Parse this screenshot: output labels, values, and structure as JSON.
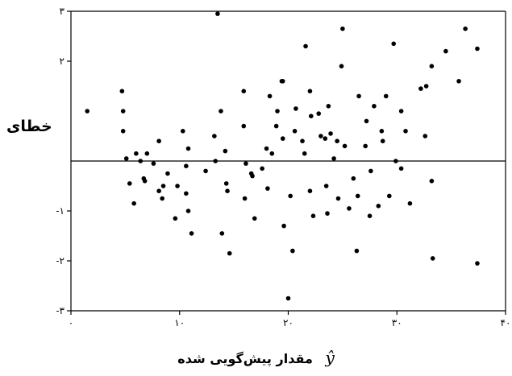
{
  "chart_data": {
    "type": "scatter",
    "ylabel": "خطای",
    "xlabel": {
      "symbol": "ŷ",
      "text": "مقدار پیش‌گویی شده"
    },
    "xlim": [
      0,
      40
    ],
    "ylim": [
      -3,
      3
    ],
    "x_ticks": [
      {
        "value": 0,
        "label": "۰"
      },
      {
        "value": 10,
        "label": "۱۰"
      },
      {
        "value": 20,
        "label": "۲۰"
      },
      {
        "value": 30,
        "label": "۳۰"
      },
      {
        "value": 40,
        "label": "۴۰"
      }
    ],
    "y_ticks": [
      {
        "value": 3,
        "label": "۳"
      },
      {
        "value": 2,
        "label": "۲"
      },
      {
        "value": -1,
        "label": "-۱"
      },
      {
        "value": -2,
        "label": "-۲"
      },
      {
        "value": -3,
        "label": "-۳"
      }
    ],
    "reference_line_y": 0,
    "grid": false,
    "points": [
      [
        1.5,
        1.0
      ],
      [
        4.7,
        1.4
      ],
      [
        4.8,
        1.0
      ],
      [
        4.8,
        0.6
      ],
      [
        5.1,
        0.05
      ],
      [
        5.4,
        -0.45
      ],
      [
        5.8,
        -0.85
      ],
      [
        6.0,
        0.15
      ],
      [
        6.4,
        0.0
      ],
      [
        6.7,
        -0.35
      ],
      [
        6.8,
        -0.4
      ],
      [
        7.0,
        0.15
      ],
      [
        7.6,
        -0.05
      ],
      [
        8.1,
        -0.6
      ],
      [
        8.1,
        0.4
      ],
      [
        8.4,
        -0.75
      ],
      [
        8.5,
        -0.5
      ],
      [
        8.9,
        -0.25
      ],
      [
        9.6,
        -1.15
      ],
      [
        9.8,
        -0.5
      ],
      [
        10.3,
        0.6
      ],
      [
        10.6,
        -0.65
      ],
      [
        10.6,
        -0.1
      ],
      [
        10.8,
        -1.0
      ],
      [
        10.8,
        0.25
      ],
      [
        11.1,
        -1.45
      ],
      [
        12.4,
        -0.2
      ],
      [
        13.2,
        0.5
      ],
      [
        13.3,
        0.0
      ],
      [
        13.5,
        2.95
      ],
      [
        13.8,
        1.0
      ],
      [
        13.9,
        -1.45
      ],
      [
        14.2,
        0.2
      ],
      [
        14.3,
        -0.45
      ],
      [
        14.4,
        -0.6
      ],
      [
        14.6,
        -1.85
      ],
      [
        15.9,
        1.4
      ],
      [
        15.9,
        0.7
      ],
      [
        16.0,
        -0.75
      ],
      [
        16.1,
        -0.05
      ],
      [
        16.6,
        -0.25
      ],
      [
        16.7,
        -0.3
      ],
      [
        16.9,
        -1.15
      ],
      [
        17.6,
        -0.15
      ],
      [
        18.0,
        0.25
      ],
      [
        18.1,
        -0.55
      ],
      [
        18.3,
        1.3
      ],
      [
        18.5,
        0.15
      ],
      [
        18.9,
        0.7
      ],
      [
        19.0,
        1.0
      ],
      [
        19.4,
        1.6
      ],
      [
        19.5,
        1.6
      ],
      [
        19.5,
        0.45
      ],
      [
        19.6,
        -1.3
      ],
      [
        20.0,
        -2.75
      ],
      [
        20.2,
        -0.7
      ],
      [
        20.4,
        -1.8
      ],
      [
        20.6,
        0.6
      ],
      [
        20.7,
        1.05
      ],
      [
        21.3,
        0.4
      ],
      [
        21.5,
        0.15
      ],
      [
        21.6,
        2.3
      ],
      [
        22.0,
        1.4
      ],
      [
        22.0,
        -0.6
      ],
      [
        22.1,
        0.9
      ],
      [
        22.3,
        -1.1
      ],
      [
        22.8,
        0.95
      ],
      [
        23.0,
        0.5
      ],
      [
        23.4,
        0.45
      ],
      [
        23.5,
        -0.5
      ],
      [
        23.6,
        -1.05
      ],
      [
        23.7,
        1.1
      ],
      [
        23.9,
        0.55
      ],
      [
        24.2,
        0.05
      ],
      [
        24.5,
        0.4
      ],
      [
        24.6,
        -0.75
      ],
      [
        24.9,
        1.9
      ],
      [
        25.0,
        2.65
      ],
      [
        25.2,
        0.3
      ],
      [
        25.6,
        -0.95
      ],
      [
        26.0,
        -0.35
      ],
      [
        26.3,
        -1.8
      ],
      [
        26.4,
        -0.7
      ],
      [
        26.5,
        1.3
      ],
      [
        27.1,
        0.3
      ],
      [
        27.2,
        0.8
      ],
      [
        27.5,
        -1.1
      ],
      [
        27.6,
        -0.2
      ],
      [
        27.9,
        1.1
      ],
      [
        28.3,
        -0.9
      ],
      [
        28.6,
        0.6
      ],
      [
        28.7,
        0.4
      ],
      [
        29.0,
        1.3
      ],
      [
        29.3,
        -0.7
      ],
      [
        29.7,
        2.35
      ],
      [
        29.9,
        0.0
      ],
      [
        30.4,
        -0.15
      ],
      [
        30.4,
        1.0
      ],
      [
        30.8,
        0.6
      ],
      [
        31.2,
        -0.85
      ],
      [
        32.2,
        1.45
      ],
      [
        32.6,
        0.5
      ],
      [
        32.7,
        1.5
      ],
      [
        33.2,
        -0.4
      ],
      [
        33.3,
        -1.95
      ],
      [
        33.2,
        1.9
      ],
      [
        34.5,
        2.2
      ],
      [
        35.7,
        1.6
      ],
      [
        36.3,
        2.65
      ],
      [
        37.4,
        2.25
      ],
      [
        37.4,
        -2.05
      ]
    ]
  }
}
